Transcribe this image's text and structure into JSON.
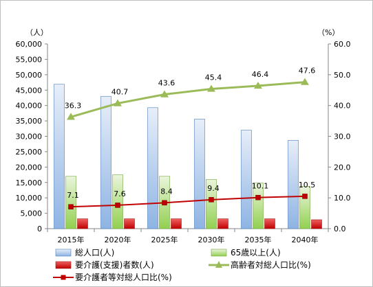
{
  "chart_data": {
    "type": "bar",
    "categories": [
      "2015年",
      "2020年",
      "2025年",
      "2030年",
      "2035年",
      "2040年"
    ],
    "y_left": {
      "unit": "（人）",
      "min": 0,
      "max": 60000,
      "step": 5000,
      "tick_labels": [
        "0",
        "5,000",
        "10,000",
        "15,000",
        "20,000",
        "25,000",
        "30,000",
        "35,000",
        "40,000",
        "45,000",
        "50,000",
        "55,000",
        "60,000"
      ]
    },
    "y_right": {
      "unit": "（%）",
      "min": 0,
      "max": 60,
      "step": 10,
      "tick_labels": [
        "0.0",
        "10.0",
        "20.0",
        "30.0",
        "40.0",
        "50.0",
        "60.0"
      ]
    },
    "series": [
      {
        "name": "総人口(人)",
        "kind": "bar",
        "axis": "left",
        "color": "#8eb4e3",
        "values": [
          46900,
          43000,
          39300,
          35600,
          32000,
          28700
        ]
      },
      {
        "name": "65歳以上(人)",
        "kind": "bar",
        "axis": "left",
        "color": "#92d050",
        "values": [
          17000,
          17500,
          17000,
          16000,
          14800,
          13700
        ]
      },
      {
        "name": "要介護(支援)者数(人)",
        "kind": "bar",
        "axis": "left",
        "color": "#e83a3a",
        "values": [
          3200,
          3200,
          3200,
          3200,
          3200,
          2900
        ]
      },
      {
        "name": "高齢者対総人口比(%)",
        "kind": "line",
        "axis": "right",
        "color": "#9bbb59",
        "marker": "triangle",
        "values": [
          36.3,
          40.7,
          43.6,
          45.4,
          46.4,
          47.6
        ],
        "labels": [
          "36.3",
          "40.7",
          "43.6",
          "45.4",
          "46.4",
          "47.6"
        ]
      },
      {
        "name": "要介護者等対総人口比(%)",
        "kind": "line",
        "axis": "right",
        "color": "#c00000",
        "marker": "square",
        "values": [
          7.1,
          7.6,
          8.4,
          9.4,
          10.1,
          10.5
        ],
        "labels": [
          "7.1",
          "7.6",
          "8.4",
          "9.4",
          "10.1",
          "10.5"
        ]
      }
    ],
    "legend": {
      "position": "bottom"
    },
    "grid": false
  }
}
